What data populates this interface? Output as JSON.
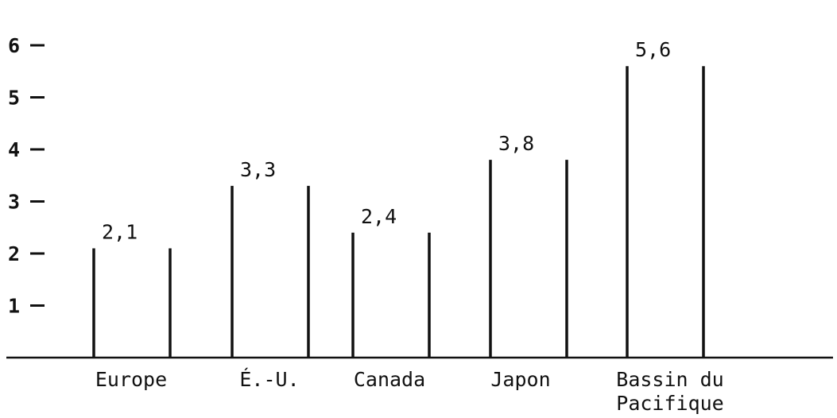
{
  "chart_data": {
    "type": "bar",
    "categories": [
      "Europe",
      "É.-U.",
      "Canada",
      "Japon",
      "Bassin du Pacifique"
    ],
    "category_lines": [
      [
        "Europe"
      ],
      [
        "É.-U."
      ],
      [
        "Canada"
      ],
      [
        "Japon"
      ],
      [
        "Bassin du",
        "Pacifique"
      ]
    ],
    "values": [
      2.1,
      3.3,
      2.4,
      3.8,
      5.6
    ],
    "value_labels": [
      "2,1",
      "3,3",
      "2,4",
      "3,8",
      "5,6"
    ],
    "ylim": [
      0,
      6.2
    ],
    "yticks": [
      1,
      2,
      3,
      4,
      5,
      6
    ],
    "grid": false,
    "legend": "none",
    "title": "",
    "xlabel": "",
    "ylabel": "",
    "colors": {
      "ink": "#111111",
      "background": "#ffffff"
    }
  }
}
